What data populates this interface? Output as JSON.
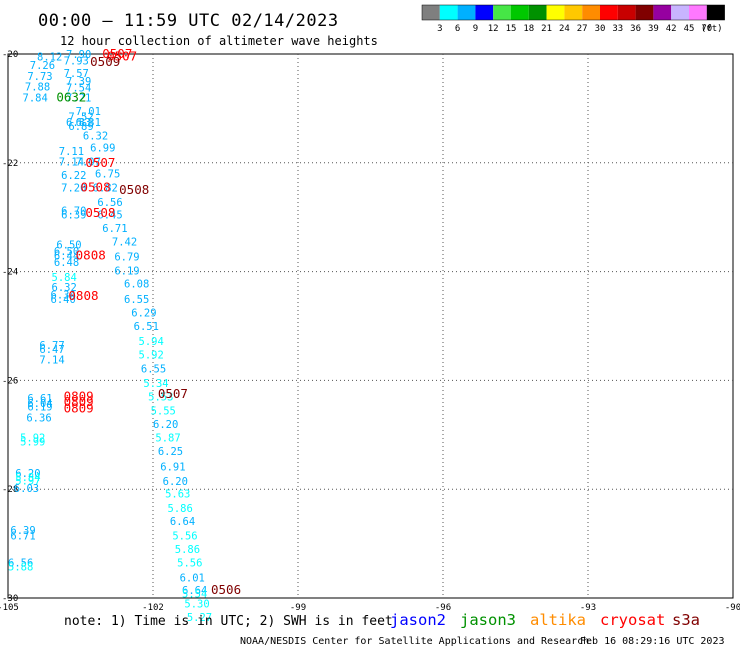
{
  "header": {
    "title": "00:00 — 11:59 UTC 02/14/2023",
    "subtitle": "12 hour collection of altimeter wave heights"
  },
  "color_scale": {
    "labels": [
      "3",
      "6",
      "9",
      "12",
      "15",
      "18",
      "21",
      "24",
      "27",
      "30",
      "33",
      "36",
      "39",
      "42",
      "45",
      "70"
    ],
    "unit": "(ft)",
    "colors": [
      "#7f7f7f",
      "#00ffff",
      "#00b0ff",
      "#0000ff",
      "#46e646",
      "#00c800",
      "#009100",
      "#ffff00",
      "#ffc800",
      "#ff8c00",
      "#ff0000",
      "#c80000",
      "#800000",
      "#9600a0",
      "#c8b4ff",
      "#ff78ff",
      "#000000"
    ]
  },
  "footer": {
    "note": "note: 1) Time is in UTC; 2) SWH is in feet",
    "credit": "NOAA/NESDIS Center for Satellite Applications and Research",
    "timestamp": "Feb 16 08:29:16 UTC 2023"
  },
  "legend": [
    {
      "name": "jason2",
      "color": "#0000ff"
    },
    {
      "name": "jason3",
      "color": "#009100"
    },
    {
      "name": "altika",
      "color": "#ff8c00"
    },
    {
      "name": "cryosat",
      "color": "#ff0000"
    },
    {
      "name": "s3a",
      "color": "#800000"
    }
  ],
  "chart_data": {
    "type": "scatter",
    "xlim": [
      -105,
      -90
    ],
    "ylim": [
      -30,
      -20
    ],
    "xticks": [
      "-105",
      "-102",
      "-99",
      "-96",
      "-93",
      "-90"
    ],
    "yticks": [
      "-20",
      "-22",
      "-24",
      "-26",
      "-28",
      "-30"
    ],
    "grid": true,
    "wave_heights": [
      {
        "x": -104.4,
        "y": -20.05,
        "v": "8.12",
        "c": "#00b0ff"
      },
      {
        "x": -103.8,
        "y": -20.0,
        "v": "7.90",
        "c": "#00b0ff"
      },
      {
        "x": -103.85,
        "y": -20.12,
        "v": "7.93",
        "c": "#00b0ff"
      },
      {
        "x": -104.55,
        "y": -20.2,
        "v": "7.26",
        "c": "#00b0ff"
      },
      {
        "x": -104.6,
        "y": -20.4,
        "v": "7.73",
        "c": "#00b0ff"
      },
      {
        "x": -103.85,
        "y": -20.35,
        "v": "7.57",
        "c": "#00b0ff"
      },
      {
        "x": -103.8,
        "y": -20.5,
        "v": "7.39",
        "c": "#00b0ff"
      },
      {
        "x": -104.65,
        "y": -20.6,
        "v": "7.88",
        "c": "#00b0ff"
      },
      {
        "x": -103.8,
        "y": -20.62,
        "v": "7.54",
        "c": "#00b0ff"
      },
      {
        "x": -104.7,
        "y": -20.8,
        "v": "7.84",
        "c": "#00b0ff"
      },
      {
        "x": -103.8,
        "y": -20.8,
        "v": "7.21",
        "c": "#00b0ff"
      },
      {
        "x": -103.6,
        "y": -21.05,
        "v": "7.01",
        "c": "#00b0ff"
      },
      {
        "x": -103.75,
        "y": -21.15,
        "v": "7.52",
        "c": "#00b0ff"
      },
      {
        "x": -103.8,
        "y": -21.25,
        "v": "6.83",
        "c": "#00b0ff"
      },
      {
        "x": -103.6,
        "y": -21.25,
        "v": "6.31",
        "c": "#00b0ff"
      },
      {
        "x": -103.75,
        "y": -21.32,
        "v": "6.89",
        "c": "#00b0ff"
      },
      {
        "x": -103.45,
        "y": -21.5,
        "v": "6.32",
        "c": "#00b0ff"
      },
      {
        "x": -103.3,
        "y": -21.72,
        "v": "6.99",
        "c": "#00b0ff"
      },
      {
        "x": -103.95,
        "y": -21.78,
        "v": "7.11",
        "c": "#00b0ff"
      },
      {
        "x": -103.95,
        "y": -21.98,
        "v": "7.14",
        "c": "#00b0ff"
      },
      {
        "x": -103.6,
        "y": -21.98,
        "v": "7.07",
        "c": "#00b0ff"
      },
      {
        "x": -103.9,
        "y": -22.22,
        "v": "6.22",
        "c": "#00b0ff"
      },
      {
        "x": -103.2,
        "y": -22.2,
        "v": "6.75",
        "c": "#00b0ff"
      },
      {
        "x": -103.9,
        "y": -22.45,
        "v": "7.20",
        "c": "#00b0ff"
      },
      {
        "x": -103.25,
        "y": -22.45,
        "v": "6.82",
        "c": "#00b0ff"
      },
      {
        "x": -103.15,
        "y": -22.72,
        "v": "6.56",
        "c": "#00b0ff"
      },
      {
        "x": -103.9,
        "y": -22.88,
        "v": "6.70",
        "c": "#00b0ff"
      },
      {
        "x": -103.9,
        "y": -22.95,
        "v": "6.39",
        "c": "#00b0ff"
      },
      {
        "x": -103.15,
        "y": -22.95,
        "v": "6.45",
        "c": "#00b0ff"
      },
      {
        "x": -103.05,
        "y": -23.2,
        "v": "6.71",
        "c": "#00b0ff"
      },
      {
        "x": -102.85,
        "y": -23.45,
        "v": "7.42",
        "c": "#00b0ff"
      },
      {
        "x": -104.0,
        "y": -23.5,
        "v": "6.50",
        "c": "#00b0ff"
      },
      {
        "x": -104.05,
        "y": -23.62,
        "v": "6.50",
        "c": "#00b0ff"
      },
      {
        "x": -104.05,
        "y": -23.7,
        "v": "6.44",
        "c": "#00b0ff"
      },
      {
        "x": -102.8,
        "y": -23.72,
        "v": "6.79",
        "c": "#00b0ff"
      },
      {
        "x": -104.05,
        "y": -23.82,
        "v": "6.48",
        "c": "#00b0ff"
      },
      {
        "x": -102.8,
        "y": -23.98,
        "v": "6.19",
        "c": "#00b0ff"
      },
      {
        "x": -104.1,
        "y": -24.1,
        "v": "5.84",
        "c": "#00ffff"
      },
      {
        "x": -102.6,
        "y": -24.22,
        "v": "6.08",
        "c": "#00b0ff"
      },
      {
        "x": -104.1,
        "y": -24.28,
        "v": "6.32",
        "c": "#00b0ff"
      },
      {
        "x": -104.12,
        "y": -24.42,
        "v": "6.34",
        "c": "#00b0ff"
      },
      {
        "x": -104.12,
        "y": -24.5,
        "v": "6.40",
        "c": "#00b0ff"
      },
      {
        "x": -102.6,
        "y": -24.5,
        "v": "6.55",
        "c": "#00b0ff"
      },
      {
        "x": -102.45,
        "y": -24.75,
        "v": "6.29",
        "c": "#00b0ff"
      },
      {
        "x": -102.4,
        "y": -25.0,
        "v": "6.51",
        "c": "#00b0ff"
      },
      {
        "x": -102.3,
        "y": -25.28,
        "v": "5.94",
        "c": "#00ffff"
      },
      {
        "x": -104.35,
        "y": -25.35,
        "v": "6.77",
        "c": "#00b0ff"
      },
      {
        "x": -104.35,
        "y": -25.42,
        "v": "6.47",
        "c": "#00b0ff"
      },
      {
        "x": -102.3,
        "y": -25.52,
        "v": "5.92",
        "c": "#00ffff"
      },
      {
        "x": -104.35,
        "y": -25.62,
        "v": "7.14",
        "c": "#00b0ff"
      },
      {
        "x": -102.25,
        "y": -25.78,
        "v": "6.55",
        "c": "#00b0ff"
      },
      {
        "x": -102.2,
        "y": -26.05,
        "v": "5.34",
        "c": "#00ffff"
      },
      {
        "x": -102.1,
        "y": -26.3,
        "v": "5.53",
        "c": "#00ffff"
      },
      {
        "x": -104.6,
        "y": -26.32,
        "v": "6.61",
        "c": "#00b0ff"
      },
      {
        "x": -104.6,
        "y": -26.42,
        "v": "6.04",
        "c": "#00b0ff"
      },
      {
        "x": -104.6,
        "y": -26.48,
        "v": "6.19",
        "c": "#00b0ff"
      },
      {
        "x": -102.05,
        "y": -26.55,
        "v": "5.55",
        "c": "#00ffff"
      },
      {
        "x": -104.62,
        "y": -26.68,
        "v": "6.36",
        "c": "#00b0ff"
      },
      {
        "x": -102.0,
        "y": -26.8,
        "v": "6.20",
        "c": "#00b0ff"
      },
      {
        "x": -104.75,
        "y": -27.05,
        "v": "5.92",
        "c": "#00ffff"
      },
      {
        "x": -104.75,
        "y": -27.12,
        "v": "5.99",
        "c": "#00ffff"
      },
      {
        "x": -101.95,
        "y": -27.05,
        "v": "5.87",
        "c": "#00ffff"
      },
      {
        "x": -101.9,
        "y": -27.3,
        "v": "6.25",
        "c": "#00b0ff"
      },
      {
        "x": -101.85,
        "y": -27.58,
        "v": "6.91",
        "c": "#00b0ff"
      },
      {
        "x": -104.85,
        "y": -27.7,
        "v": "6.20",
        "c": "#00b0ff"
      },
      {
        "x": -104.85,
        "y": -27.78,
        "v": "5.84",
        "c": "#00ffff"
      },
      {
        "x": -104.85,
        "y": -27.84,
        "v": "5.97",
        "c": "#00ffff"
      },
      {
        "x": -101.8,
        "y": -27.85,
        "v": "6.20",
        "c": "#00b0ff"
      },
      {
        "x": -104.88,
        "y": -27.98,
        "v": "6.03",
        "c": "#00b0ff"
      },
      {
        "x": -101.75,
        "y": -28.08,
        "v": "5.63",
        "c": "#00ffff"
      },
      {
        "x": -101.7,
        "y": -28.35,
        "v": "5.86",
        "c": "#00ffff"
      },
      {
        "x": -101.65,
        "y": -28.58,
        "v": "6.64",
        "c": "#00b0ff"
      },
      {
        "x": -104.95,
        "y": -28.75,
        "v": "6.39",
        "c": "#00b0ff"
      },
      {
        "x": -104.95,
        "y": -28.85,
        "v": "6.71",
        "c": "#00b0ff"
      },
      {
        "x": -101.6,
        "y": -28.85,
        "v": "5.56",
        "c": "#00ffff"
      },
      {
        "x": -101.55,
        "y": -29.1,
        "v": "5.86",
        "c": "#00ffff"
      },
      {
        "x": -105.0,
        "y": -29.35,
        "v": "6.56",
        "c": "#00b0ff"
      },
      {
        "x": -105.0,
        "y": -29.42,
        "v": "5.88",
        "c": "#00ffff"
      },
      {
        "x": -101.5,
        "y": -29.35,
        "v": "5.56",
        "c": "#00ffff"
      },
      {
        "x": -101.45,
        "y": -29.62,
        "v": "6.01",
        "c": "#00b0ff"
      },
      {
        "x": -101.4,
        "y": -29.85,
        "v": "6.64",
        "c": "#00b0ff"
      },
      {
        "x": -101.4,
        "y": -29.92,
        "v": "5.54",
        "c": "#00ffff"
      },
      {
        "x": -101.35,
        "y": -30.1,
        "v": "5.30",
        "c": "#00ffff"
      },
      {
        "x": -101.3,
        "y": -30.35,
        "v": "5.27",
        "c": "#00ffff"
      }
    ],
    "pass_times": [
      {
        "x": -103.05,
        "y": -20.0,
        "t": "0507",
        "c": "#ff0000"
      },
      {
        "x": -102.95,
        "y": -20.05,
        "t": "0507",
        "c": "#ff0000"
      },
      {
        "x": -103.3,
        "y": -20.15,
        "t": "0509",
        "c": "#800000"
      },
      {
        "x": -104.0,
        "y": -20.8,
        "t": "0632",
        "c": "#009100"
      },
      {
        "x": -103.4,
        "y": -22.0,
        "t": "0507",
        "c": "#ff0000"
      },
      {
        "x": -103.5,
        "y": -22.45,
        "t": "0508",
        "c": "#ff0000"
      },
      {
        "x": -102.7,
        "y": -22.5,
        "t": "0508",
        "c": "#800000"
      },
      {
        "x": -103.4,
        "y": -22.92,
        "t": "0508",
        "c": "#ff0000"
      },
      {
        "x": -103.6,
        "y": -23.7,
        "t": "0808",
        "c": "#ff0000"
      },
      {
        "x": -103.75,
        "y": -24.45,
        "t": "0808",
        "c": "#ff0000"
      },
      {
        "x": -101.9,
        "y": -26.25,
        "t": "0507",
        "c": "#800000"
      },
      {
        "x": -103.85,
        "y": -26.3,
        "t": "0809",
        "c": "#ff0000"
      },
      {
        "x": -103.85,
        "y": -26.4,
        "t": "0809",
        "c": "#ff0000"
      },
      {
        "x": -103.85,
        "y": -26.52,
        "t": "0809",
        "c": "#ff0000"
      },
      {
        "x": -100.8,
        "y": -29.85,
        "t": "0506",
        "c": "#800000"
      }
    ]
  }
}
